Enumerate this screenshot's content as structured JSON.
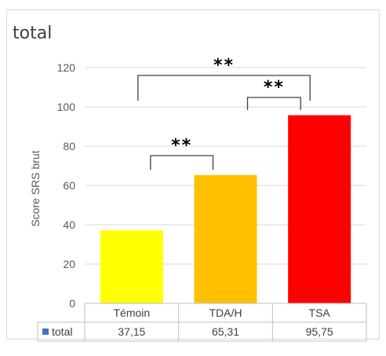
{
  "chart_data": {
    "type": "bar",
    "title": "total",
    "ylabel": "Score SRS brut",
    "xlabel": "",
    "ylim": [
      0,
      120
    ],
    "yticks": [
      0,
      20,
      40,
      60,
      80,
      100,
      120
    ],
    "grid": true,
    "categories": [
      "Témoin",
      "TDA/H",
      "TSA"
    ],
    "series": [
      {
        "name": "total",
        "values": [
          37.15,
          65.31,
          95.75
        ],
        "value_labels": [
          "37,15",
          "65,31",
          "95,75"
        ],
        "colors": [
          "#ffff00",
          "#ffc000",
          "#ff0000"
        ],
        "legend_color": "#4472c4"
      }
    ],
    "annotations": [
      {
        "label": "**",
        "from": "Témoin",
        "to": "TDA/H"
      },
      {
        "label": "**",
        "from": "TDA/H",
        "to": "TSA"
      },
      {
        "label": "**",
        "from": "Témoin",
        "to": "TSA"
      }
    ],
    "data_table": true
  }
}
